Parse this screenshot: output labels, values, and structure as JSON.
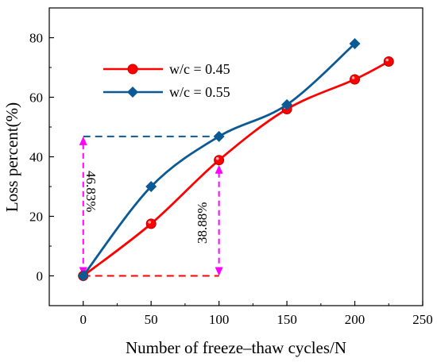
{
  "chart_data": {
    "type": "line",
    "xlabel": "Number of freeze–thaw cycles/N",
    "ylabel": "Loss percent(%)",
    "xlim": [
      -25,
      250
    ],
    "ylim": [
      -10,
      90
    ],
    "xticks": [
      0,
      50,
      100,
      150,
      200,
      250
    ],
    "yticks": [
      0,
      20,
      40,
      60,
      80
    ],
    "grid": false,
    "legend_position": "top-left",
    "series": [
      {
        "name": "w/c = 0.45",
        "color": "#ff0000",
        "marker": "circle",
        "x": [
          0,
          50,
          100,
          150,
          200,
          225
        ],
        "values": [
          0,
          17.5,
          38.88,
          56,
          66,
          72
        ]
      },
      {
        "name": "w/c = 0.55",
        "color": "#0a5a96",
        "marker": "diamond",
        "x": [
          0,
          50,
          100,
          150,
          200
        ],
        "values": [
          0,
          30,
          46.83,
          57.5,
          78
        ]
      }
    ],
    "annotations": [
      {
        "text": "46.83%",
        "color": "#ff00ff"
      },
      {
        "text": "38.88%",
        "color": "#ff00ff"
      }
    ]
  }
}
